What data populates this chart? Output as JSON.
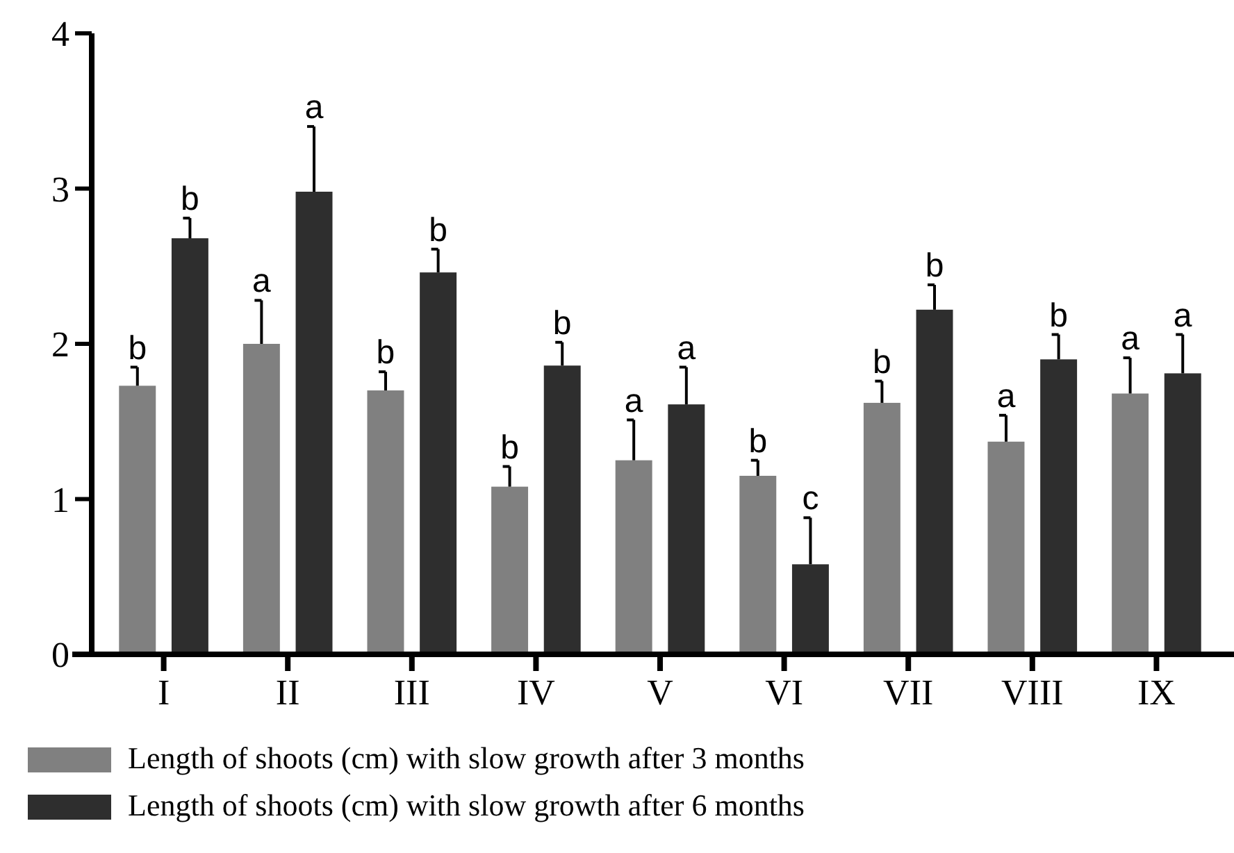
{
  "chart_data": {
    "type": "bar",
    "categories": [
      "I",
      "II",
      "III",
      "IV",
      "V",
      "VI",
      "VII",
      "VIII",
      "IX"
    ],
    "series": [
      {
        "name": "Length of shoots (cm) with slow growth after 3 months",
        "color": "#808080",
        "values": [
          1.73,
          2.0,
          1.7,
          1.08,
          1.25,
          1.15,
          1.62,
          1.37,
          1.68
        ],
        "errors": [
          0.12,
          0.28,
          0.12,
          0.13,
          0.26,
          0.1,
          0.14,
          0.17,
          0.23
        ],
        "value_labels": [
          "b",
          "a",
          "b",
          "b",
          "a",
          "b",
          "b",
          "a",
          "a"
        ]
      },
      {
        "name": "Length of shoots (cm) with slow growth after 6 months",
        "color": "#2e2e2e",
        "values": [
          2.68,
          2.98,
          2.46,
          1.86,
          1.61,
          0.58,
          2.22,
          1.9,
          1.81
        ],
        "errors": [
          0.13,
          0.42,
          0.15,
          0.15,
          0.24,
          0.3,
          0.16,
          0.16,
          0.25
        ],
        "value_labels": [
          "b",
          "a",
          "b",
          "b",
          "a",
          "c",
          "b",
          "b",
          "a"
        ]
      }
    ],
    "ylim": [
      0,
      4
    ],
    "yticks": [
      0,
      1,
      2,
      3,
      4
    ],
    "grid": false,
    "legend": "bottom"
  }
}
